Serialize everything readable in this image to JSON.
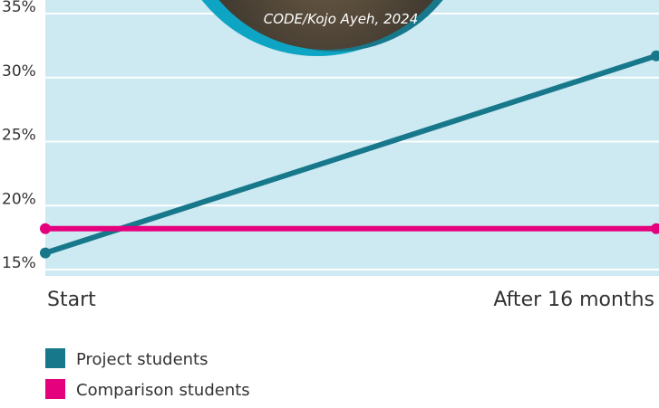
{
  "chart_data": {
    "type": "line",
    "annotation": "CODE/Kojo Ayeh, 2024",
    "categories": [
      "Start",
      "After 16 months"
    ],
    "series": [
      {
        "name": "Project students",
        "color": "#17788b",
        "values": [
          16.3,
          31.7
        ]
      },
      {
        "name": "Comparison students",
        "color": "#e5007d",
        "values": [
          18.2,
          18.2
        ]
      }
    ],
    "ylim": [
      15,
      35
    ],
    "yticks": [
      {
        "value": 15,
        "label": "15%"
      },
      {
        "value": 20,
        "label": "20%"
      },
      {
        "value": 25,
        "label": "25%"
      },
      {
        "value": 30,
        "label": "30%"
      },
      {
        "value": 35,
        "label": "35%"
      }
    ],
    "grid": true
  }
}
